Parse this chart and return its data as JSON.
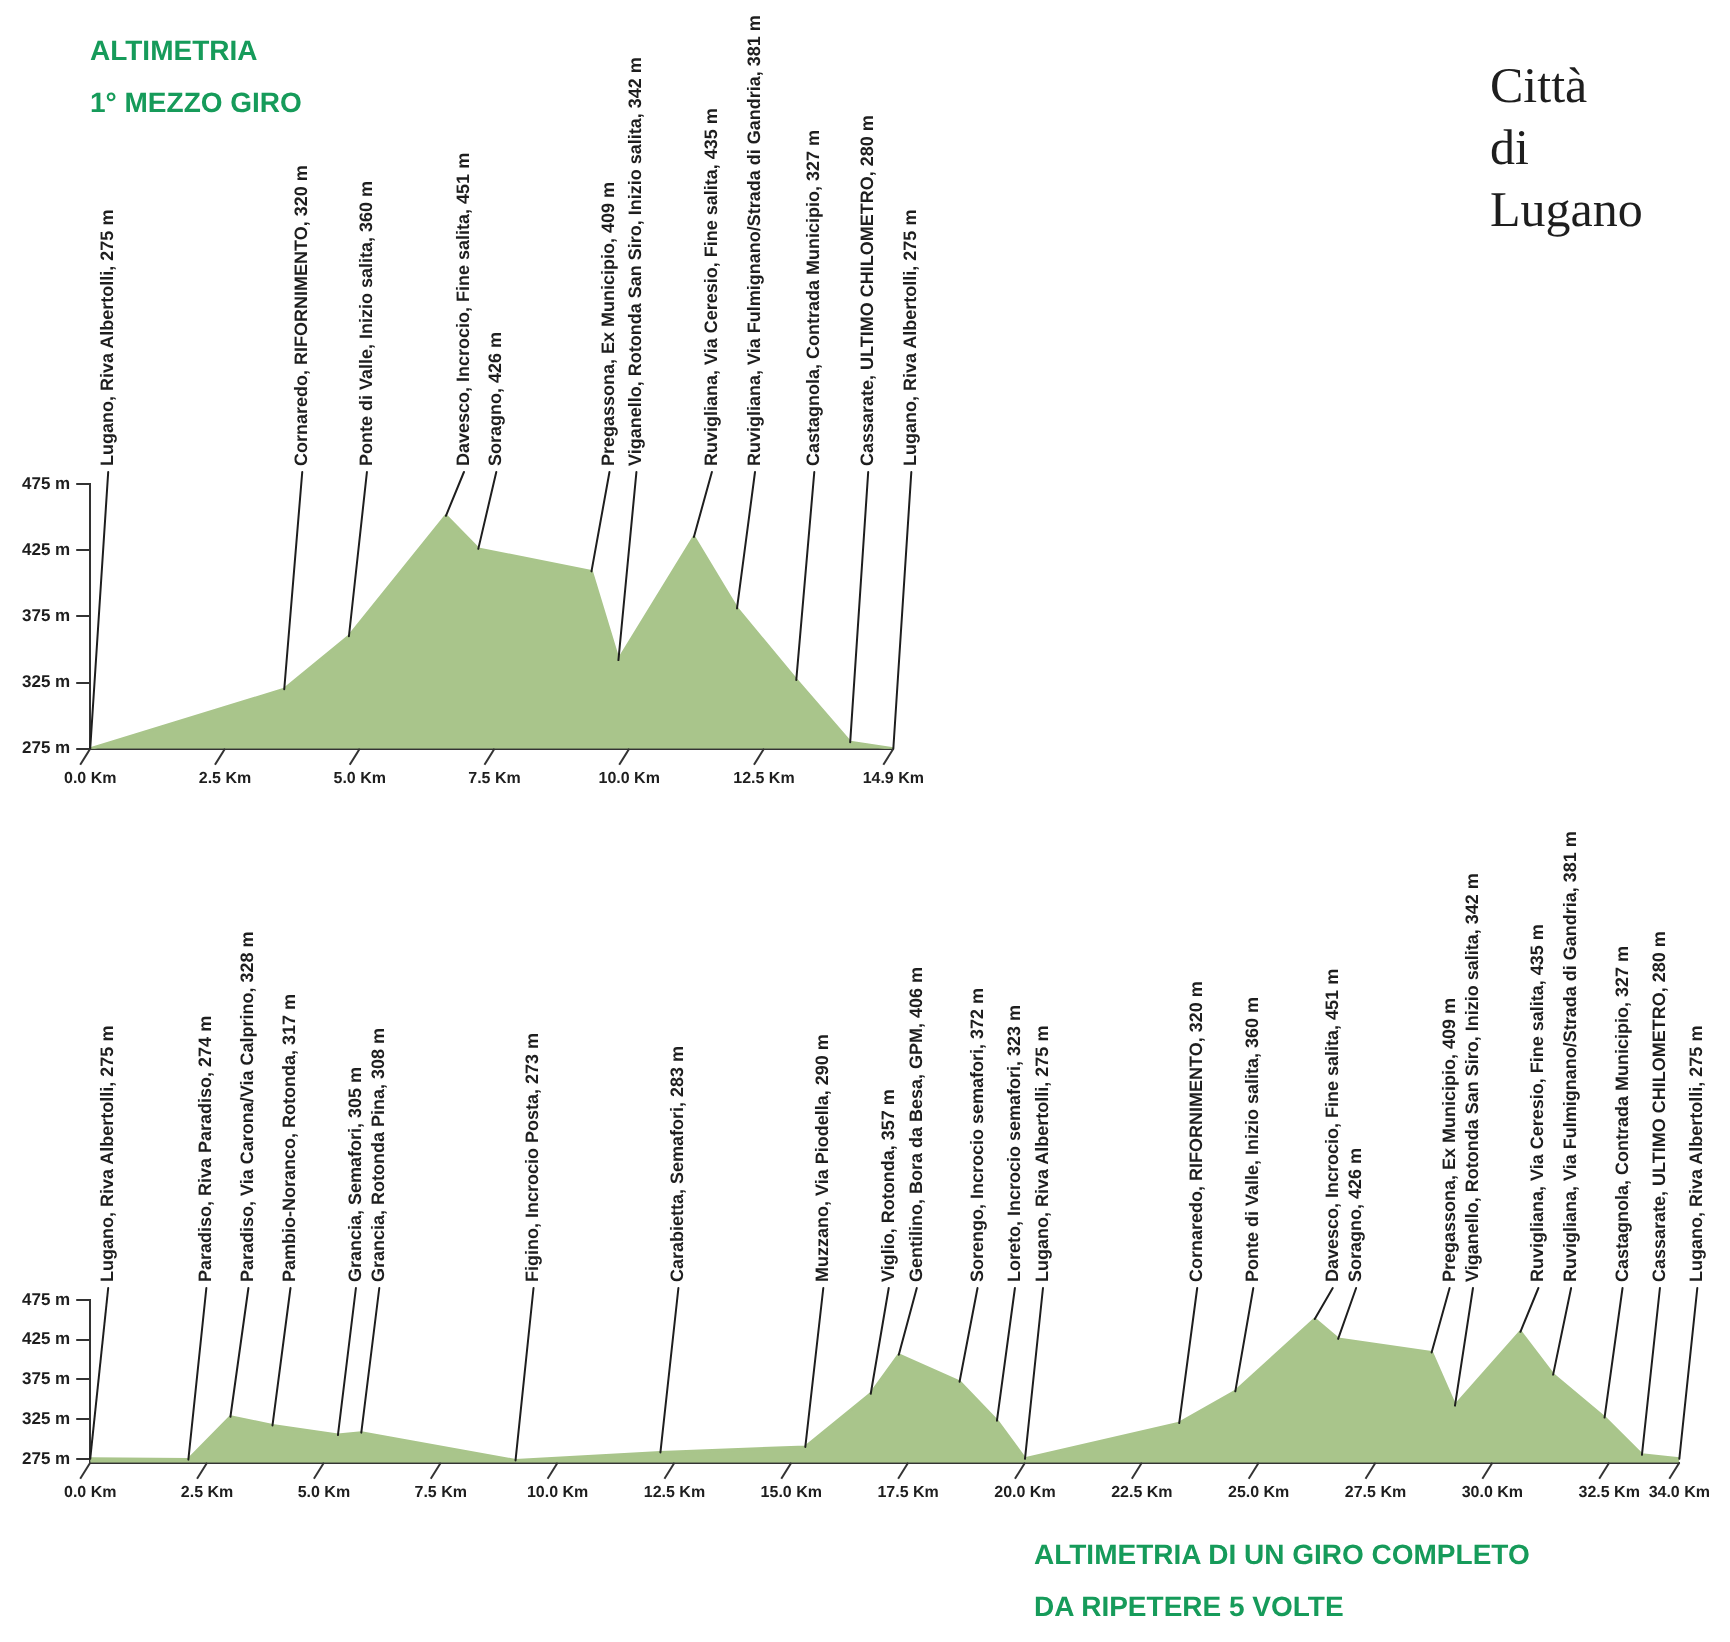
{
  "chart_data": [
    {
      "type": "area",
      "title": "ALTIMETRIA",
      "subtitle": "1° MEZZO GIRO",
      "x": [
        0,
        3.6,
        4.8,
        6.6,
        7.2,
        9.3,
        9.8,
        11.2,
        12.0,
        13.1,
        14.1,
        14.9
      ],
      "values": [
        275,
        320,
        360,
        451,
        426,
        409,
        342,
        435,
        381,
        327,
        280,
        275
      ],
      "color": "#a9c58b",
      "xlim": [
        0,
        14.9
      ],
      "xticks": [
        {
          "value": 0,
          "label": "0.0 Km"
        },
        {
          "value": 2.5,
          "label": "2.5 Km"
        },
        {
          "value": 5,
          "label": "5.0 Km"
        },
        {
          "value": 7.5,
          "label": "7.5 Km"
        },
        {
          "value": 10,
          "label": "10.0 Km"
        },
        {
          "value": 12.5,
          "label": "12.5 Km"
        },
        {
          "value": 14.9,
          "label": "14.9 Km"
        }
      ],
      "ylim": [
        275,
        475
      ],
      "yticks": [
        {
          "value": 275,
          "label": "275 m"
        },
        {
          "value": 325,
          "label": "325 m"
        },
        {
          "value": 375,
          "label": "375 m"
        },
        {
          "value": 425,
          "label": "425 m"
        },
        {
          "value": 475,
          "label": "475 m"
        }
      ],
      "annotations": [
        "Città di Lugano",
        {
          "text": "Lugano, Riva Albertolli, 275 m",
          "x": 0,
          "y": 275
        },
        {
          "text": "Cornaredo, RIFORNIMENTO, 320 m",
          "x": 3.6,
          "y": 320
        },
        {
          "text": "Ponte di Valle, Inizio salita, 360 m",
          "x": 4.8,
          "y": 360
        },
        {
          "text": "Davesco, Incrocio, Fine salita, 451 m",
          "x": 6.6,
          "y": 451
        },
        {
          "text": "Soragno, 426 m",
          "x": 7.2,
          "y": 426
        },
        {
          "text": "Pregassona, Ex Municipio, 409 m",
          "x": 9.3,
          "y": 409
        },
        {
          "text": "Viganello, Rotonda San Siro, Inizio salita, 342 m",
          "x": 9.8,
          "y": 342
        },
        {
          "text": "Ruvigliana, Via Ceresio, Fine salita, 435 m",
          "x": 11.2,
          "y": 435
        },
        {
          "text": "Ruvigliana, Via Fulmignano/Strada di Gandria, 381 m",
          "x": 12.0,
          "y": 381
        },
        {
          "text": "Castagnola, Contrada Municipio, 327 m",
          "x": 13.1,
          "y": 327
        },
        {
          "text": "Cassarate, ULTIMO CHILOMETRO, 280 m",
          "x": 14.1,
          "y": 280
        },
        {
          "text": "Lugano, Riva Albertolli, 275 m",
          "x": 14.9,
          "y": 275
        }
      ]
    },
    {
      "type": "area",
      "title": "ALTIMETRIA DI UN GIRO COMPLETO",
      "subtitle": "DA RIPETERE 5 VOLTE",
      "x": [
        0,
        2.1,
        3.0,
        3.9,
        5.3,
        5.8,
        9.1,
        12.2,
        15.3,
        16.7,
        17.3,
        18.6,
        19.4,
        20.0,
        23.3,
        24.5,
        26.2,
        26.7,
        28.7,
        29.2,
        30.6,
        31.3,
        32.4,
        33.2,
        34.0
      ],
      "values": [
        275,
        274,
        328,
        317,
        305,
        308,
        273,
        283,
        290,
        357,
        406,
        372,
        323,
        275,
        320,
        360,
        451,
        426,
        409,
        342,
        435,
        381,
        327,
        280,
        275
      ],
      "color": "#a9c58b",
      "xlim": [
        0,
        34
      ],
      "xticks": [
        {
          "value": 0,
          "label": "0.0 Km"
        },
        {
          "value": 2.5,
          "label": "2.5 Km"
        },
        {
          "value": 5,
          "label": "5.0 Km"
        },
        {
          "value": 7.5,
          "label": "7.5 Km"
        },
        {
          "value": 10,
          "label": "10.0 Km"
        },
        {
          "value": 12.5,
          "label": "12.5 Km"
        },
        {
          "value": 15,
          "label": "15.0 Km"
        },
        {
          "value": 17.5,
          "label": "17.5 Km"
        },
        {
          "value": 20,
          "label": "20.0 Km"
        },
        {
          "value": 22.5,
          "label": "22.5 Km"
        },
        {
          "value": 25,
          "label": "25.0 Km"
        },
        {
          "value": 27.5,
          "label": "27.5 Km"
        },
        {
          "value": 30,
          "label": "30.0 Km"
        },
        {
          "value": 32.5,
          "label": "32.5 Km"
        },
        {
          "value": 34,
          "label": "34.0 Km"
        }
      ],
      "ylim": [
        270,
        475
      ],
      "yticks": [
        {
          "value": 275,
          "label": "275 m"
        },
        {
          "value": 325,
          "label": "325 m"
        },
        {
          "value": 375,
          "label": "375 m"
        },
        {
          "value": 425,
          "label": "425 m"
        },
        {
          "value": 475,
          "label": "475 m"
        }
      ],
      "annotations": [
        {
          "text": "Lugano, Riva Albertolli, 275 m",
          "x": 0,
          "y": 275
        },
        {
          "text": "Paradiso, Riva Paradiso, 274 m",
          "x": 2.1,
          "y": 274
        },
        {
          "text": "Paradiso, Via Carona/Via Calprino, 328 m",
          "x": 3.0,
          "y": 328
        },
        {
          "text": "Pambio-Noranco, Rotonda, 317 m",
          "x": 3.9,
          "y": 317
        },
        {
          "text": "Grancia, Semafori, 305 m",
          "x": 5.3,
          "y": 305
        },
        {
          "text": "Grancia, Rotonda Pina, 308 m",
          "x": 5.8,
          "y": 308
        },
        {
          "text": "Figino, Incrocio Posta, 273 m",
          "x": 9.1,
          "y": 273
        },
        {
          "text": "Carabietta, Semafori, 283 m",
          "x": 12.2,
          "y": 283
        },
        {
          "text": "Muzzano, Via Piodella, 290 m",
          "x": 15.3,
          "y": 290
        },
        {
          "text": "Viglio, Rotonda, 357 m",
          "x": 16.7,
          "y": 357
        },
        {
          "text": "Gentilino, Bora da Besa, GPM, 406 m",
          "x": 17.3,
          "y": 406
        },
        {
          "text": "Sorengo, Incrocio semafori, 372 m",
          "x": 18.6,
          "y": 372
        },
        {
          "text": "Loreto, Incrocio semafori, 323 m",
          "x": 19.4,
          "y": 323
        },
        {
          "text": "Lugano, Riva Albertolli, 275 m",
          "x": 20.0,
          "y": 275
        },
        {
          "text": "Cornaredo, RIFORNIMENTO, 320 m",
          "x": 23.3,
          "y": 320
        },
        {
          "text": "Ponte di Valle, Inizio salita, 360 m",
          "x": 24.5,
          "y": 360
        },
        {
          "text": "Davesco, Incrocio, Fine salita, 451 m",
          "x": 26.2,
          "y": 451
        },
        {
          "text": "Soragno, 426 m",
          "x": 26.7,
          "y": 426
        },
        {
          "text": "Pregassona, Ex Municipio, 409 m",
          "x": 28.7,
          "y": 409
        },
        {
          "text": "Viganello, Rotonda San Siro, Inizio salita, 342 m",
          "x": 29.2,
          "y": 342
        },
        {
          "text": "Ruvigliana, Via Ceresio, Fine salita, 435 m",
          "x": 30.6,
          "y": 435
        },
        {
          "text": "Ruvigliana, Via Fulmignano/Strada di Gandria, 381 m",
          "x": 31.3,
          "y": 381
        },
        {
          "text": "Castagnola, Contrada Municipio, 327 m",
          "x": 32.4,
          "y": 327
        },
        {
          "text": "Cassarate, ULTIMO CHILOMETRO, 280 m",
          "x": 33.2,
          "y": 280
        },
        {
          "text": "Lugano, Riva Albertolli, 275 m",
          "x": 34.0,
          "y": 275
        }
      ]
    }
  ]
}
